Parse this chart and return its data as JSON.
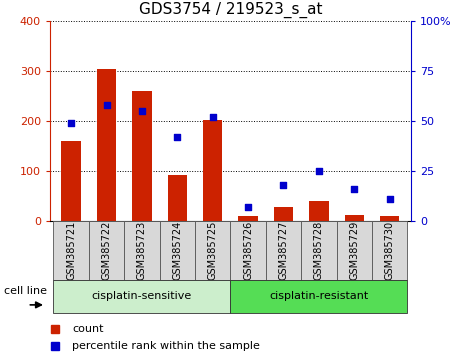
{
  "title": "GDS3754 / 219523_s_at",
  "samples": [
    "GSM385721",
    "GSM385722",
    "GSM385723",
    "GSM385724",
    "GSM385725",
    "GSM385726",
    "GSM385727",
    "GSM385728",
    "GSM385729",
    "GSM385730"
  ],
  "counts": [
    160,
    305,
    260,
    93,
    203,
    10,
    28,
    40,
    12,
    10
  ],
  "percentile_ranks": [
    49,
    58,
    55,
    42,
    52,
    7,
    18,
    25,
    16,
    11
  ],
  "bar_color": "#cc2200",
  "marker_color": "#0000cc",
  "left_ylim": [
    0,
    400
  ],
  "right_ylim": [
    0,
    100
  ],
  "left_yticks": [
    0,
    100,
    200,
    300,
    400
  ],
  "right_yticks": [
    0,
    25,
    50,
    75,
    100
  ],
  "right_yticklabels": [
    "0",
    "25",
    "50",
    "75",
    "100%"
  ],
  "group1_label": "cisplatin-sensitive",
  "group2_label": "cisplatin-resistant",
  "group1_color": "#cceecc",
  "group2_color": "#55dd55",
  "sample_box_color": "#d8d8d8",
  "cell_line_label": "cell line",
  "legend_count_label": "count",
  "legend_pct_label": "percentile rank within the sample",
  "title_fontsize": 11,
  "tick_fontsize": 8,
  "sample_fontsize": 7,
  "group_fontsize": 8,
  "legend_fontsize": 8
}
